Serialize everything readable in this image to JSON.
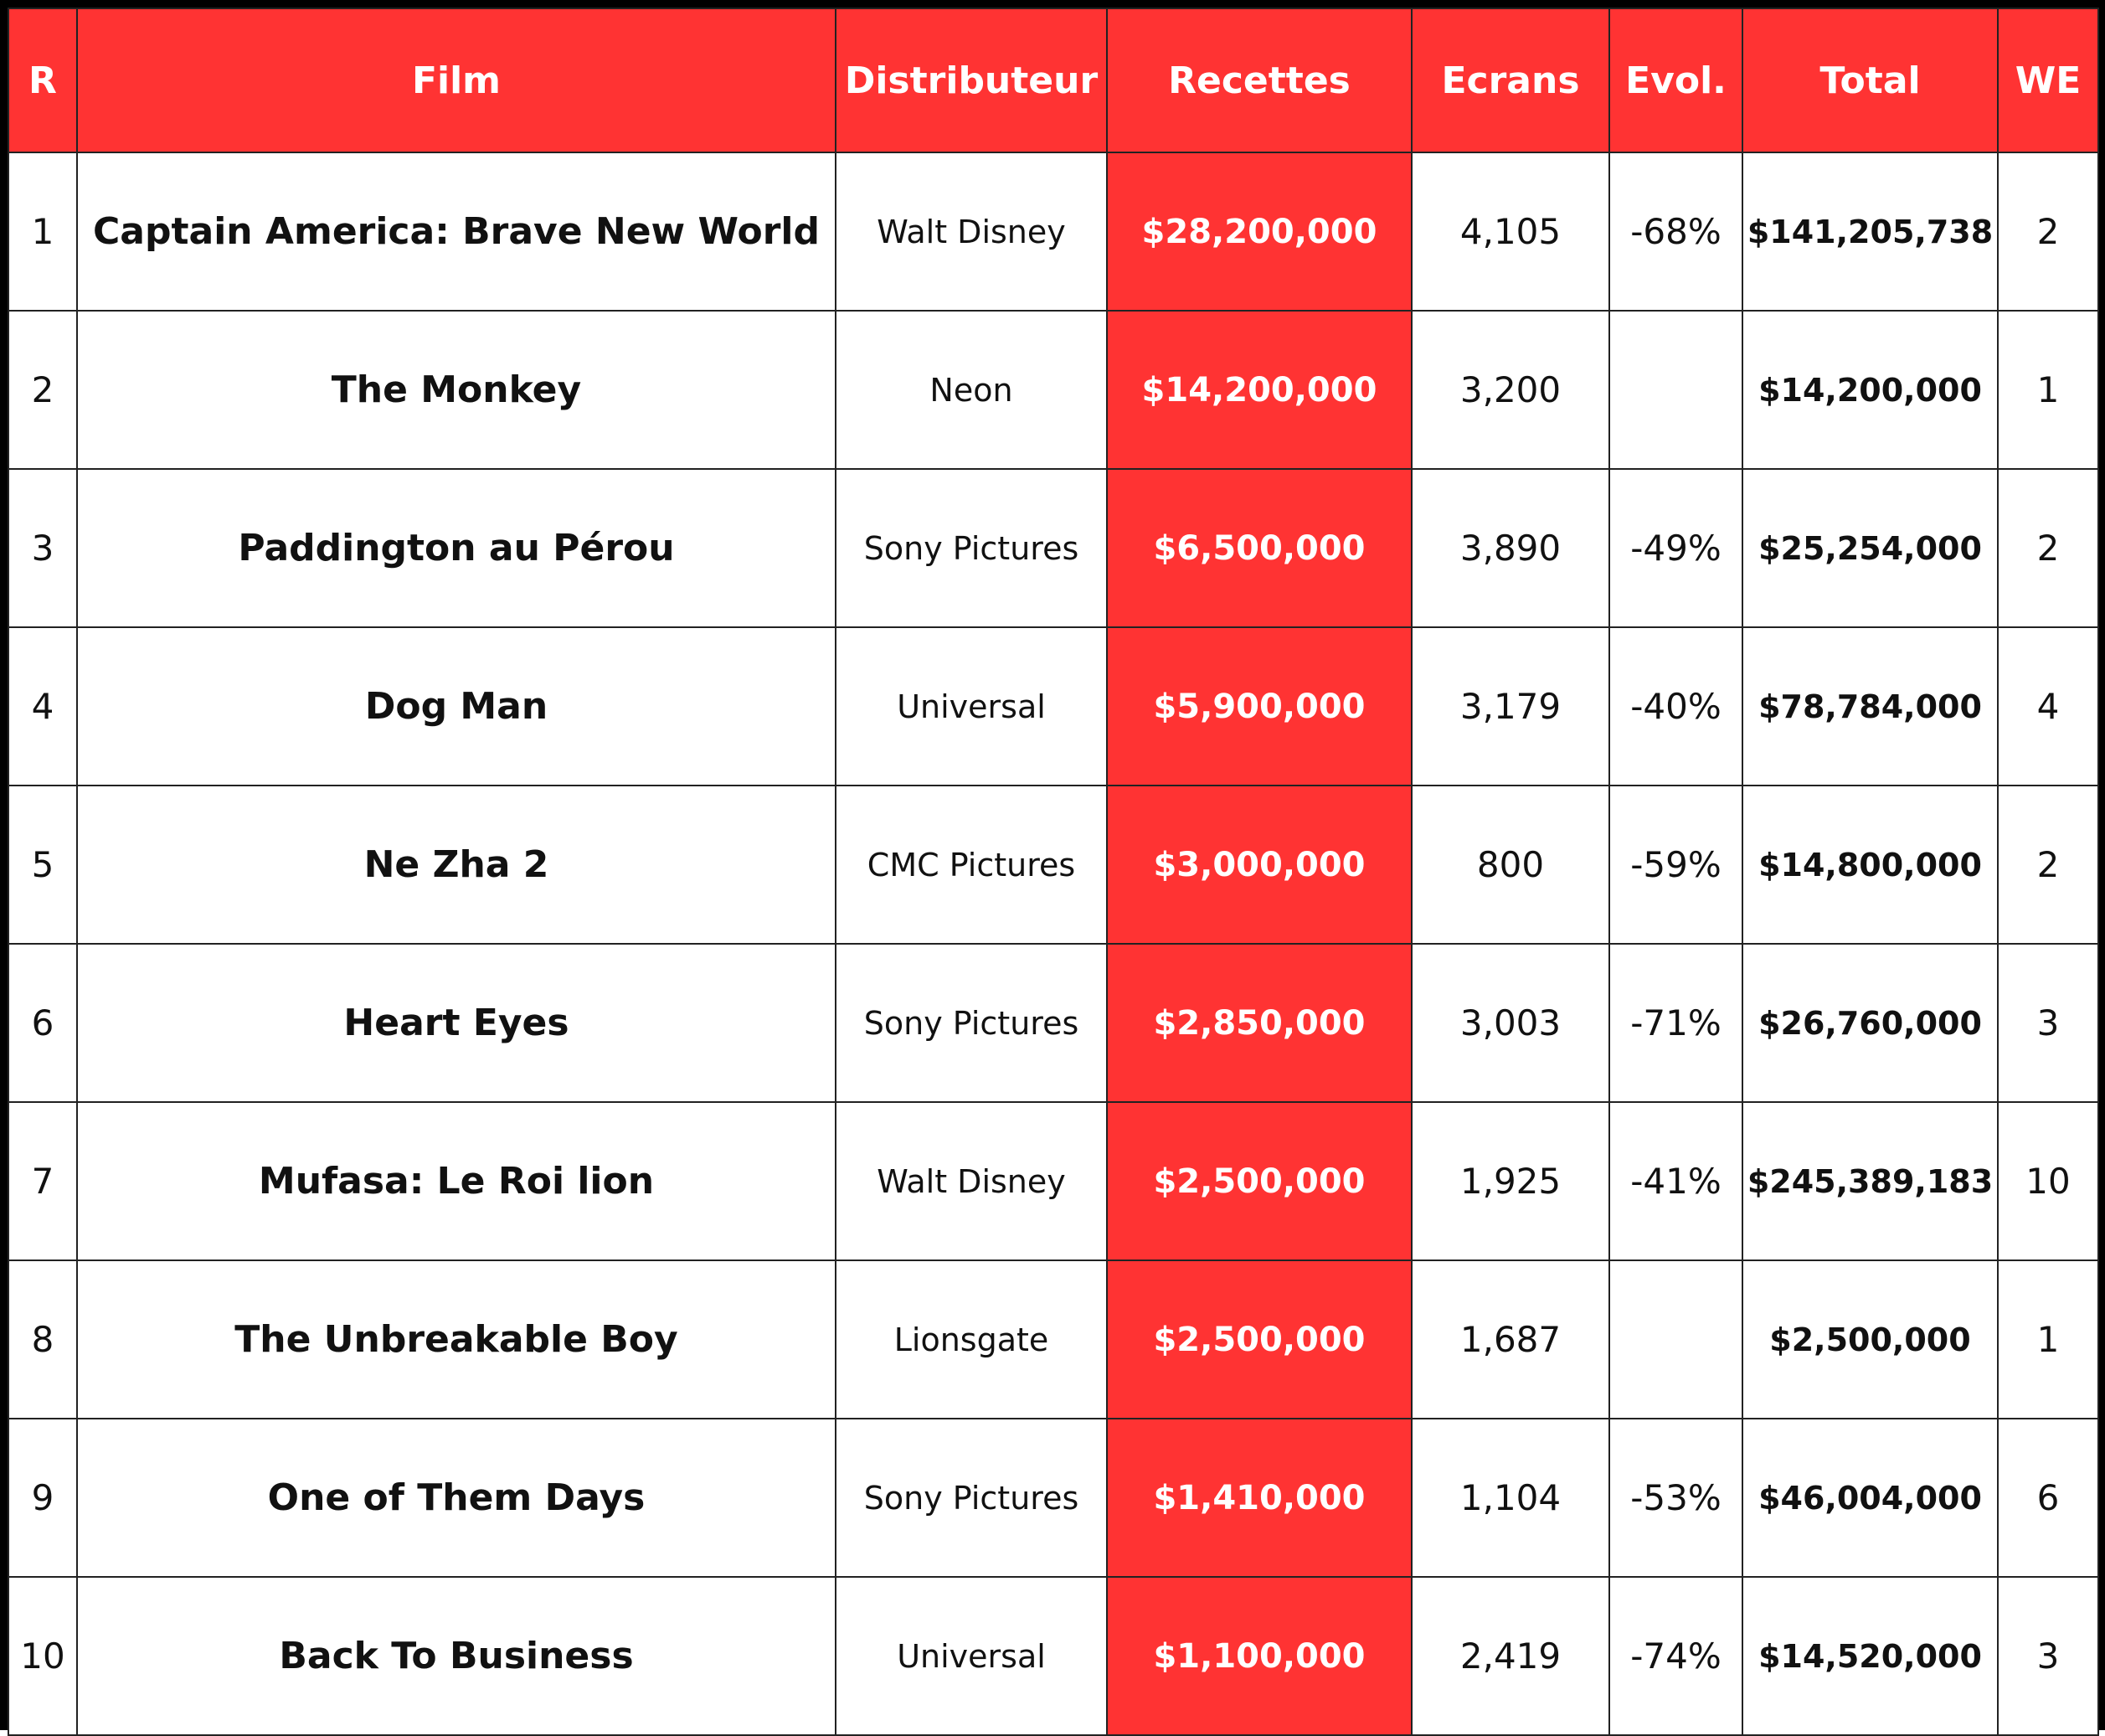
{
  "table": {
    "headers": [
      "R",
      "Film",
      "Distributeur",
      "Recettes",
      "Ecrans",
      "Evol.",
      "Total",
      "WE"
    ],
    "rows": [
      [
        "1",
        "Captain America: Brave New World",
        "Walt Disney",
        "$28,200,000",
        "4,105",
        "-68%",
        "$141,205,738",
        "2"
      ],
      [
        "2",
        "The Monkey",
        "Neon",
        "$14,200,000",
        "3,200",
        null,
        "$14,200,000",
        "1"
      ],
      [
        "3",
        "Paddington au Pérou",
        "Sony Pictures",
        "$6,500,000",
        "3,890",
        "-49%",
        "$25,254,000",
        "2"
      ],
      [
        "4",
        "Dog Man",
        "Universal",
        "$5,900,000",
        "3,179",
        "-40%",
        "$78,784,000",
        "4"
      ],
      [
        "5",
        "Ne Zha 2",
        "CMC Pictures",
        "$3,000,000",
        "800",
        "-59%",
        "$14,800,000",
        "2"
      ],
      [
        "6",
        "Heart Eyes",
        "Sony Pictures",
        "$2,850,000",
        "3,003",
        "-71%",
        "$26,760,000",
        "3"
      ],
      [
        "7",
        "Mufasa: Le Roi lion",
        "Walt Disney",
        "$2,500,000",
        "1,925",
        "-41%",
        "$245,389,183",
        "10"
      ],
      [
        "8",
        "The Unbreakable Boy",
        "Lionsgate",
        "$2,500,000",
        "1,687",
        null,
        "$2,500,000",
        "1"
      ],
      [
        "9",
        "One of Them Days",
        "Sony Pictures",
        "$1,410,000",
        "1,104",
        "-53%",
        "$46,004,000",
        "6"
      ],
      [
        "10",
        "Back To Business",
        "Universal",
        "$1,100,000",
        "2,419",
        "-74%",
        "$14,520,000",
        "3"
      ]
    ]
  }
}
